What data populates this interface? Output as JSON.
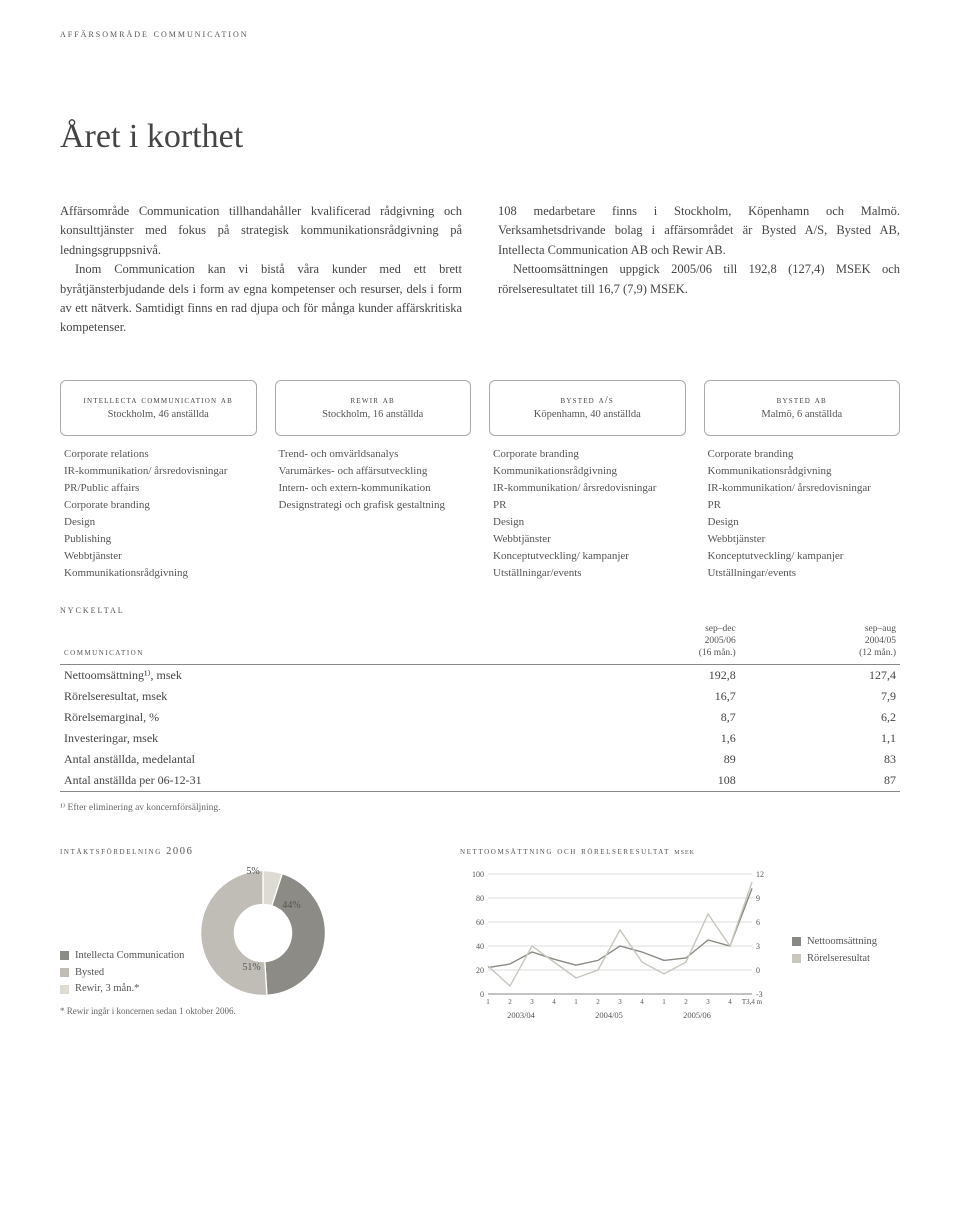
{
  "header": {
    "section_label": "affärsområde communication"
  },
  "title": "Året i korthet",
  "body": {
    "left": "Affärsområde Communication tillhandahåller kvalificerad rådgivning och konsulttjänster med fokus på strategisk kommunikationsrådgivning på ledningsgruppsnivå.\n  Inom Communication kan vi bistå våra kunder med ett brett byråtjänsterbjudande dels i form av egna kompetenser och resurser, dels i form av ett nätverk. Samtidigt finns en rad djupa och för många kunder affärskritiska kompetenser.",
    "right": "108 medarbetare finns i Stockholm, Köpenhamn och Malmö. Verksamhetsdrivande bolag i affärsområdet är Bysted A/S, Bysted AB, Intellecta Communication AB och Rewir AB.\n  Nettoomsättningen uppgick 2005/06 till 192,8 (127,4) MSEK och rörelseresultatet till 16,7 (7,9) MSEK."
  },
  "companies": [
    {
      "name": "intellecta communication ab",
      "sub": "Stockholm, 46 anställda",
      "services": [
        "Corporate relations",
        "IR-kommunikation/ årsredovisningar",
        "PR/Public affairs",
        "Corporate branding",
        "Design",
        "Publishing",
        "Webbtjänster",
        "Kommunikationsrådgivning"
      ]
    },
    {
      "name": "rewir ab",
      "sub": "Stockholm, 16 anställda",
      "services": [
        "Trend- och omvärldsanalys",
        "Varumärkes- och affärsutveckling",
        "Intern- och extern-kommunikation",
        "Designstrategi och grafisk gestaltning"
      ]
    },
    {
      "name": "bysted a/s",
      "sub": "Köpenhamn, 40 anställda",
      "services": [
        "Corporate branding",
        "Kommunikationsrådgivning",
        "IR-kommunikation/ årsredovisningar",
        "PR",
        "Design",
        "Webbtjänster",
        "Konceptutveckling/ kampanjer",
        "Utställningar/events"
      ]
    },
    {
      "name": "bysted ab",
      "sub": "Malmö, 6 anställda",
      "services": [
        "Corporate branding",
        "Kommunikationsrådgivning",
        "IR-kommunikation/ årsredovisningar",
        "PR",
        "Design",
        "Webbtjänster",
        "Konceptutveckling/ kampanjer",
        "Utställningar/events"
      ]
    }
  ],
  "nyckeltal": {
    "label": "nyckeltal",
    "col_label": "communication",
    "periods": [
      {
        "top": "sep–dec",
        "mid": "2005/06",
        "bot": "(16 mån.)"
      },
      {
        "top": "sep–aug",
        "mid": "2004/05",
        "bot": "(12 mån.)"
      }
    ],
    "rows": [
      {
        "label": "Nettoomsättning¹⁾, msek",
        "a": "192,8",
        "b": "127,4"
      },
      {
        "label": "Rörelseresultat, msek",
        "a": "16,7",
        "b": "7,9"
      },
      {
        "label": "Rörelsemarginal, %",
        "a": "8,7",
        "b": "6,2"
      },
      {
        "label": "Investeringar, msek",
        "a": "1,6",
        "b": "1,1"
      },
      {
        "label": "Antal anställda, medelantal",
        "a": "89",
        "b": "83"
      },
      {
        "label": "Antal anställda per 06-12-31",
        "a": "108",
        "b": "87"
      }
    ],
    "footnote": "¹⁾ Efter eliminering av koncernförsäljning."
  },
  "pie": {
    "title": "intäktsfördelning 2006",
    "slices": [
      {
        "label": "Intellecta Communication",
        "pct": 44,
        "color": "#8d8b86",
        "text": "44%"
      },
      {
        "label": "Bysted",
        "pct": 51,
        "color": "#bfbdb6",
        "text": "51%"
      },
      {
        "label": "Rewir, 3 mån.*",
        "pct": 5,
        "color": "#dedbd3",
        "text": "5%"
      }
    ],
    "inner_color": "#ffffff",
    "footnote": "* Rewir ingår i koncernen sedan 1 oktober 2006."
  },
  "line": {
    "title": "nettoomsättning och rörelseresultat",
    "title_unit": "msek",
    "y_left": {
      "min": 0,
      "max": 100,
      "step": 20,
      "ticks": [
        "0",
        "20",
        "40",
        "60",
        "80",
        "100"
      ]
    },
    "y_right": {
      "min": -3,
      "max": 12,
      "step": 3,
      "ticks": [
        "-3",
        "0",
        "3",
        "6",
        "9",
        "12"
      ]
    },
    "x_labels_minor": [
      "1",
      "2",
      "3",
      "4",
      "1",
      "2",
      "3",
      "4",
      "1",
      "2",
      "3",
      "4",
      "T3,4 m"
    ],
    "x_labels_major": [
      "2003/04",
      "2004/05",
      "2005/06"
    ],
    "series": [
      {
        "name": "Nettoomsättning",
        "color": "#8a8882",
        "axis": "left",
        "values": [
          22,
          25,
          35,
          29,
          24,
          28,
          40,
          35,
          28,
          30,
          45,
          40,
          88
        ]
      },
      {
        "name": "Rörelseresultat",
        "color": "#c9c6bd",
        "axis": "right",
        "values": [
          0.5,
          -2,
          3,
          1,
          -1,
          0,
          5,
          1,
          -0.5,
          1,
          7,
          3,
          11
        ]
      }
    ],
    "grid_color": "#bbbbbb",
    "bg": "#ffffff"
  }
}
